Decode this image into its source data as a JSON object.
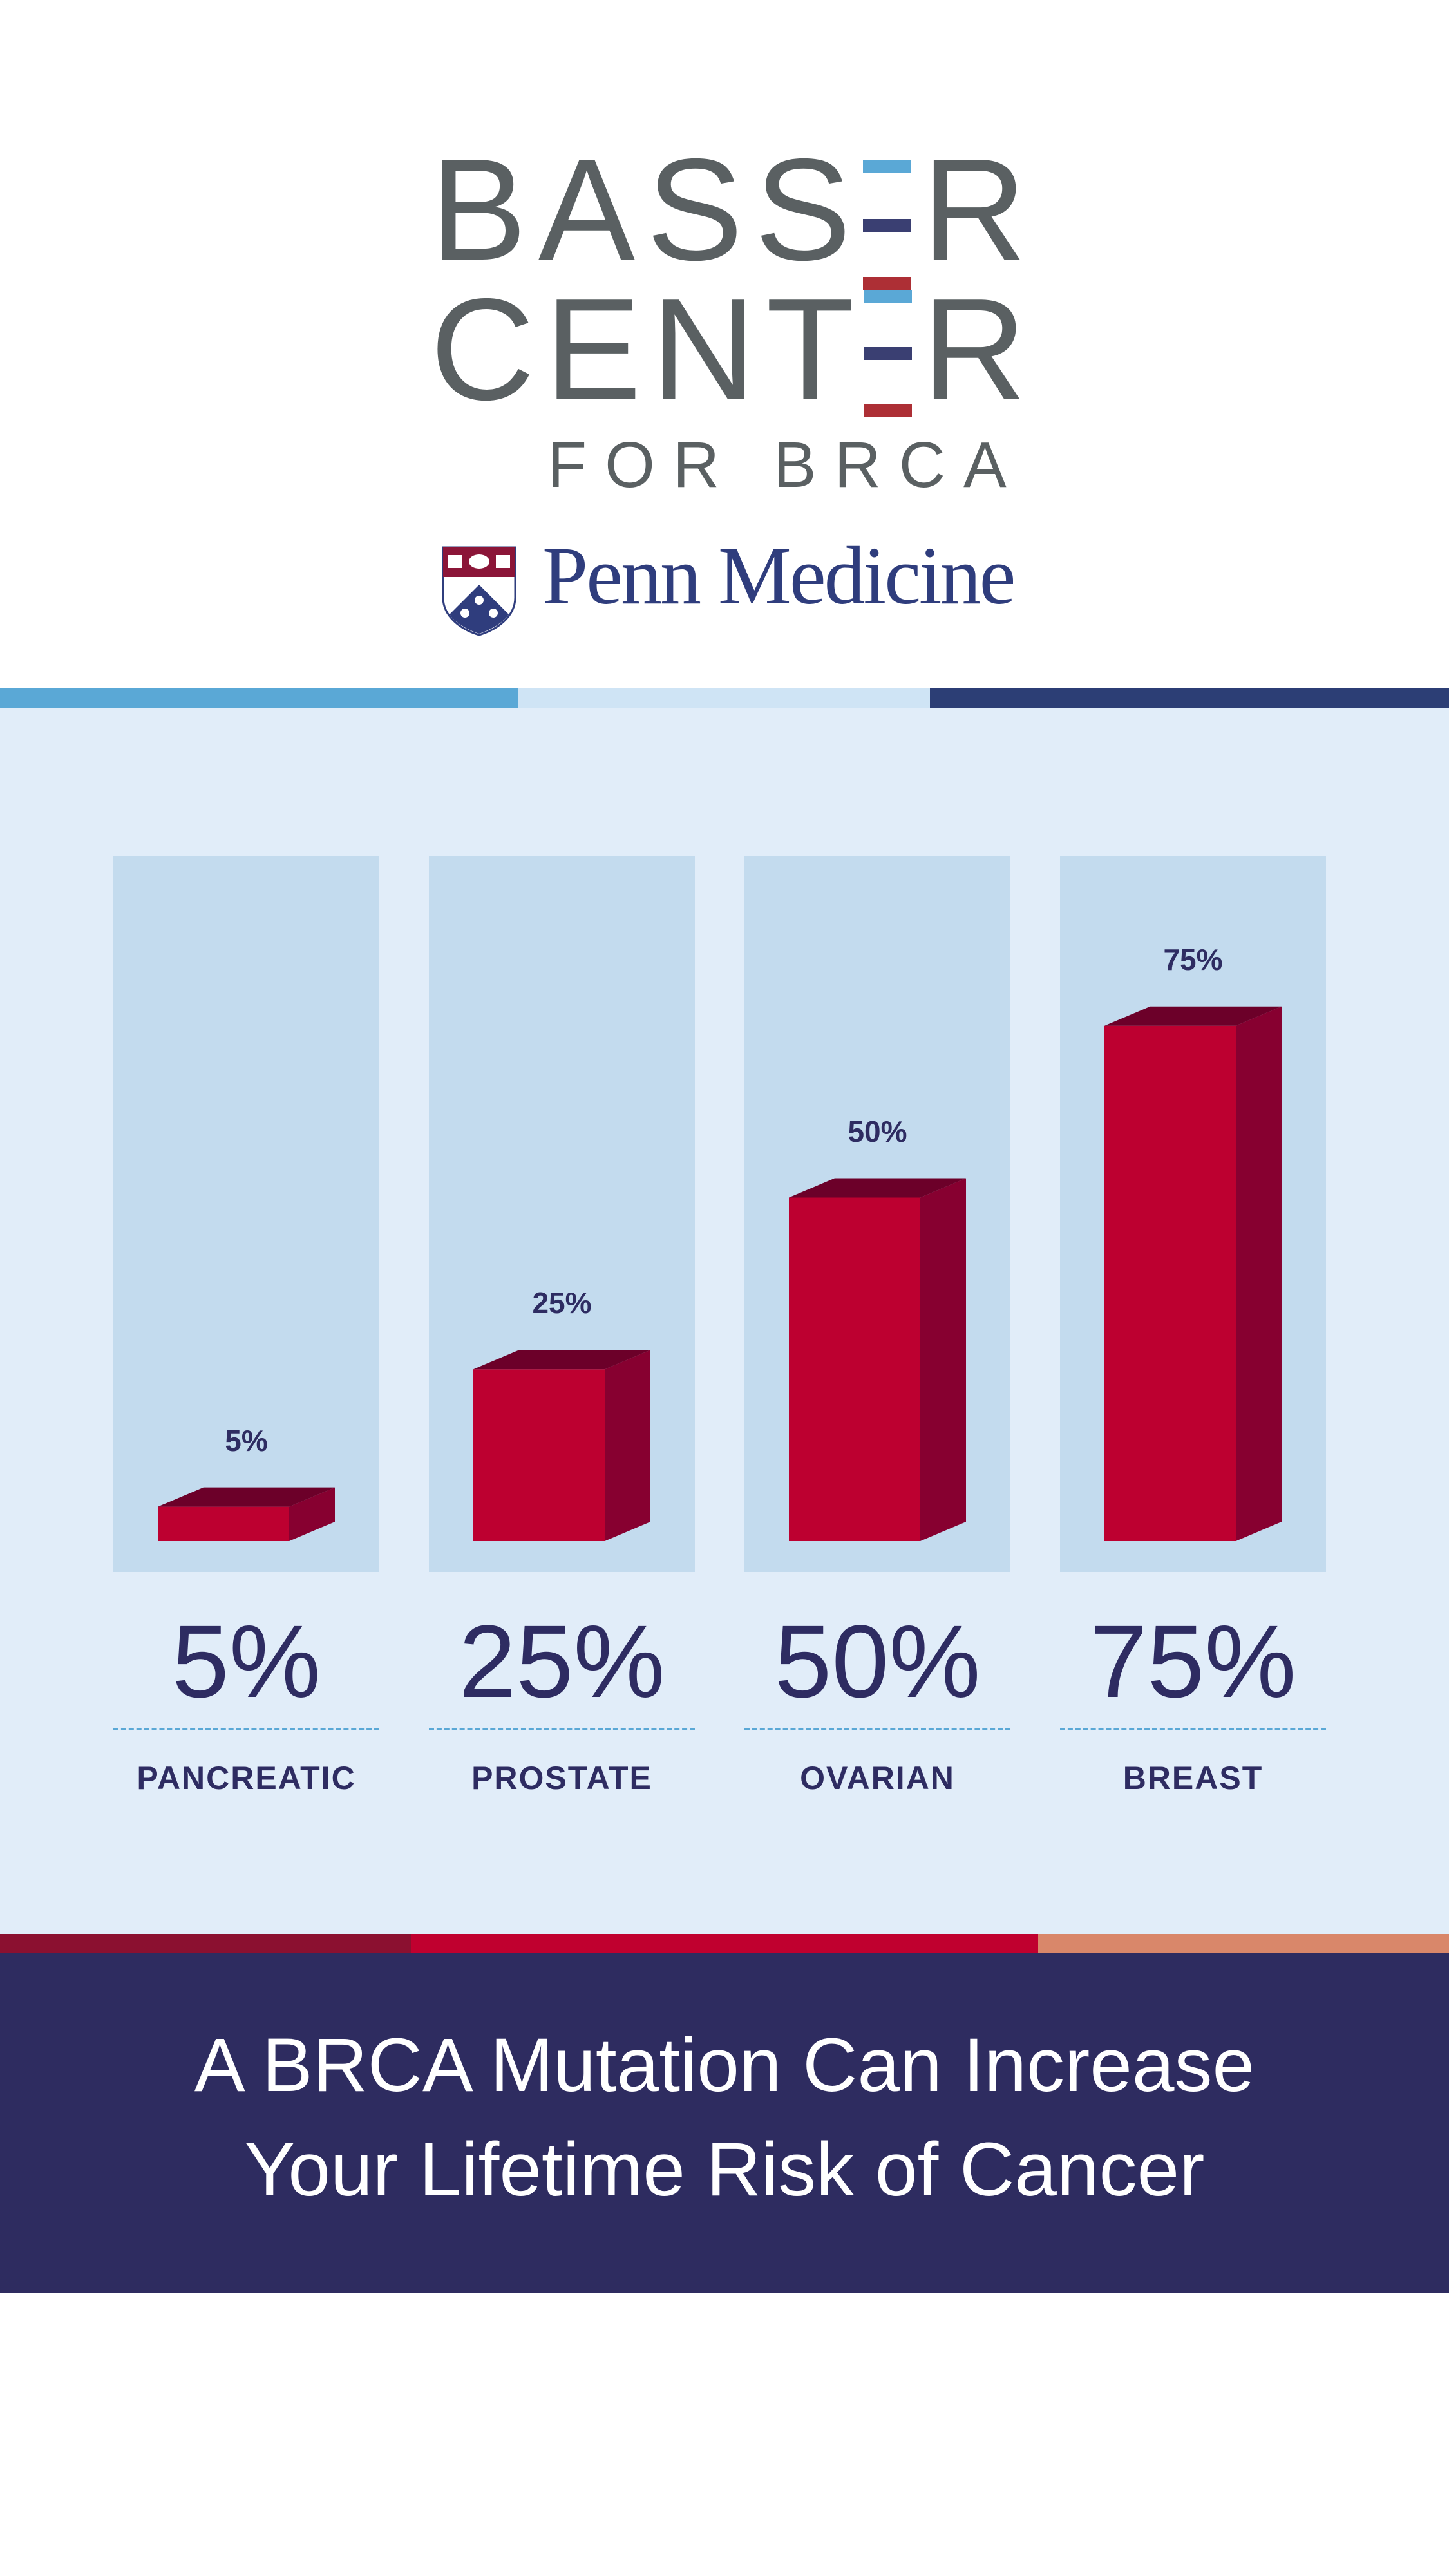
{
  "logo": {
    "line1_letters": [
      "B",
      "A",
      "S",
      "S",
      "R"
    ],
    "line2_letters": [
      "C",
      "E",
      "N",
      "T",
      "R"
    ],
    "subtitle": "FOR BRCA",
    "institution": "Penn Medicine",
    "bar_colors": [
      "#5aa8d6",
      "#3a3f72",
      "#ad2f35"
    ]
  },
  "colors": {
    "bar_front": "#bd0030",
    "bar_side": "#870030",
    "bar_top": "#6c0029",
    "accent_navy": "#2e2c60"
  },
  "chart_data": {
    "type": "bar",
    "title": "A BRCA Mutation Can Increase Your Lifetime Risk of Cancer",
    "categories": [
      "PANCREATIC",
      "PROSTATE",
      "OVARIAN",
      "BREAST"
    ],
    "values": [
      5,
      25,
      50,
      75
    ],
    "value_labels": [
      "5%",
      "25%",
      "50%",
      "75%"
    ],
    "ylim": [
      0,
      100
    ],
    "xlabel": "",
    "ylabel": "",
    "grid": false
  },
  "headline": {
    "line1": "A BRCA Mutation Can Increase",
    "line2": "Your Lifetime Risk of Cancer"
  }
}
